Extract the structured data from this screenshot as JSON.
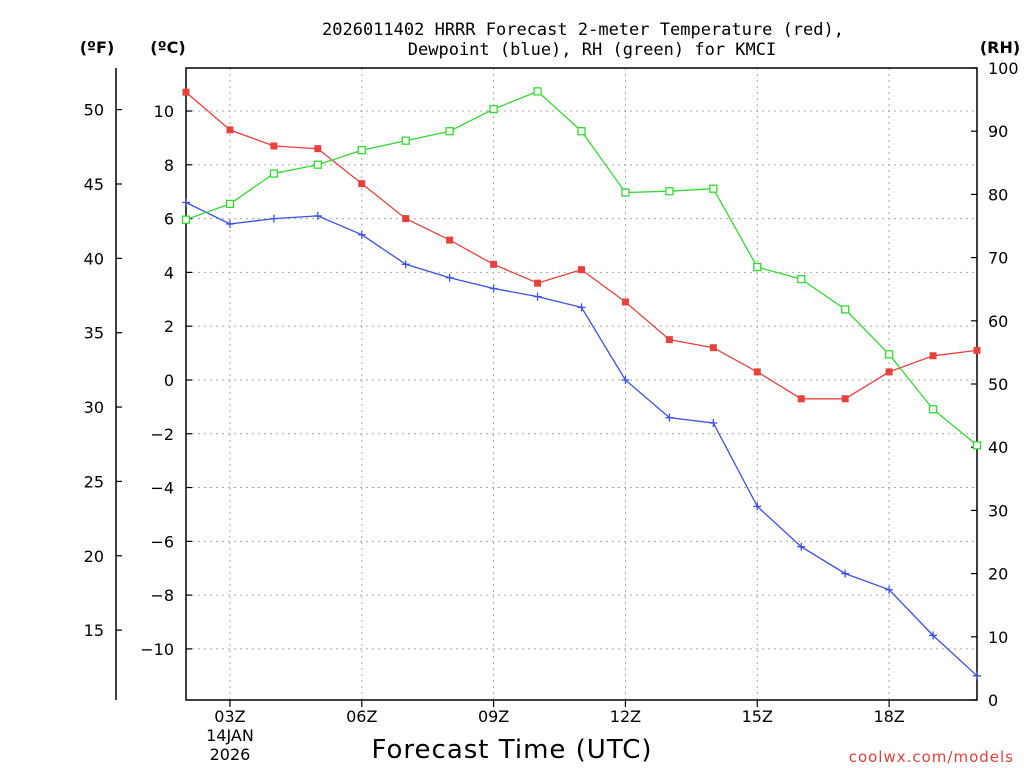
{
  "chart_data": {
    "type": "line",
    "title": [
      "2026011402 HRRR Forecast 2-meter Temperature (red),",
      "Dewpoint (blue), RH (green) for KMCI"
    ],
    "xlabel": "Forecast Time (UTC)",
    "credit": "coolwx.com/models",
    "units": {
      "fahrenheit": "(ºF)",
      "celsius": "(ºC)",
      "rh": "(RH)"
    },
    "x": [
      2,
      3,
      4,
      5,
      6,
      7,
      8,
      9,
      10,
      11,
      12,
      13,
      14,
      15,
      16,
      17,
      18,
      19,
      20
    ],
    "xlim": [
      2,
      20
    ],
    "x_ticks": [
      {
        "x": 3,
        "label": "03Z",
        "date": "14JAN",
        "year": "2026"
      },
      {
        "x": 6,
        "label": "06Z"
      },
      {
        "x": 9,
        "label": "09Z"
      },
      {
        "x": 12,
        "label": "12Z"
      },
      {
        "x": 15,
        "label": "15Z"
      },
      {
        "x": 18,
        "label": "18Z"
      }
    ],
    "ylim_c": [
      -11.9,
      11.6
    ],
    "ylim_f": [
      10.3,
      52.8
    ],
    "ylim_rh": [
      0,
      100
    ],
    "celsius_ticks": [
      "10",
      "8",
      "6",
      "4",
      "2",
      "0",
      "−2",
      "−4",
      "−6",
      "−8",
      "−10"
    ],
    "celsius_values": [
      10,
      8,
      6,
      4,
      2,
      0,
      -2,
      -4,
      -6,
      -8,
      -10
    ],
    "fahrenheit_ticks": [
      "50",
      "45",
      "40",
      "35",
      "30",
      "25",
      "20",
      "15"
    ],
    "fahrenheit_values": [
      50,
      45,
      40,
      35,
      30,
      25,
      20,
      15
    ],
    "rh_ticks": [
      "100",
      "90",
      "80",
      "70",
      "60",
      "50",
      "40",
      "30",
      "20",
      "10",
      "0"
    ],
    "rh_values": [
      100,
      90,
      80,
      70,
      60,
      50,
      40,
      30,
      20,
      10,
      0
    ],
    "series": [
      {
        "name": "Temperature",
        "axis": "celsius",
        "color": "#e8413c",
        "marker": "filled-square",
        "values": [
          10.7,
          9.3,
          8.7,
          8.6,
          7.3,
          6.0,
          5.2,
          4.3,
          3.6,
          4.1,
          2.9,
          1.5,
          1.2,
          0.3,
          -0.7,
          -0.7,
          0.3,
          0.9,
          1.1
        ]
      },
      {
        "name": "Dewpoint",
        "axis": "celsius",
        "color": "#3b50e6",
        "marker": "plus",
        "values": [
          6.6,
          5.8,
          6.0,
          6.1,
          5.4,
          4.3,
          3.8,
          3.4,
          3.1,
          2.7,
          0.0,
          -1.4,
          -1.6,
          -4.7,
          -6.2,
          -7.2,
          -7.8,
          -9.5,
          -11.0
        ]
      },
      {
        "name": "RH",
        "axis": "rh",
        "color": "#33d933",
        "marker": "open-square",
        "values": [
          76.0,
          78.5,
          83.3,
          84.7,
          87.0,
          88.5,
          90.0,
          93.5,
          96.3,
          90.0,
          80.3,
          80.5,
          80.9,
          68.5,
          66.6,
          61.8,
          54.7,
          46.0,
          40.3
        ]
      }
    ]
  }
}
